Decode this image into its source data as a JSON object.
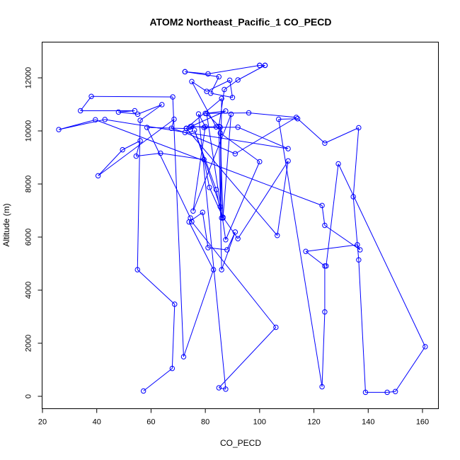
{
  "chart_data": {
    "type": "line",
    "title": "ATOM2 Northeast_Pacific_1 CO_PECD",
    "xlabel": "CO_PECD",
    "ylabel": "Altitude (m)",
    "xlim": [
      20,
      165
    ],
    "ylim": [
      -450,
      13300
    ],
    "xticks": [
      "20",
      "40",
      "60",
      "80",
      "100",
      "120",
      "140",
      "160"
    ],
    "yticks": [
      "0",
      "2000",
      "4000",
      "6000",
      "8000",
      "10000",
      "12000"
    ],
    "grid": false,
    "line_color": "#0000ff",
    "marker": "open-circle",
    "series": [
      {
        "x": [
          57.2,
          67.8,
          68.7,
          55.0,
          56.0,
          64.0,
          55.1,
          48.0,
          54.0,
          34.0,
          38.0,
          68.0,
          72.0,
          83.0,
          74.0,
          79.0,
          81.0,
          88.0,
          91.0,
          86.0,
          85.0,
          87.0,
          92.0,
          102.0,
          102.0,
          100.0,
          100.0,
          81.0,
          72.5,
          72.5,
          85.0,
          82.0,
          90.0,
          89.0,
          80.5,
          75.0,
          84.0,
          74.5,
          87.5,
          80.0,
          96.0,
          113.5,
          91.0,
          72.5,
          67.5,
          68.5,
          40.5,
          49.5,
          56.0,
          54.5,
          63.5,
          79.5,
          81.5,
          86.5,
          92.0,
          110.5,
          106.5,
          73.0,
          58.5,
          74.5,
          75.0,
          106.0,
          85.0,
          87.5,
          77.5,
          80.0,
          75.5,
          89.5,
          86.5,
          85.5,
          100.0,
          87.5,
          80.5,
          85.5,
          86.0,
          84.0,
          76.0,
          85.5,
          86.0,
          73.0,
          74.5,
          75.0,
          79.5,
          92.0,
          110.5,
          43.0,
          26.0,
          39.5,
          123.0,
          124.0,
          137.0,
          136.0,
          117.0,
          124.0,
          124.0,
          123.0,
          107.0,
          114.0,
          124.0,
          136.5,
          134.5,
          136.5,
          139.0,
          147.0,
          150.0,
          161.0,
          129.0,
          124.5
        ],
        "y": [
          200,
          1050,
          3470,
          4770,
          10400,
          10990,
          10630,
          10710,
          10760,
          10760,
          11300,
          11280,
          1490,
          4770,
          6570,
          6930,
          5600,
          5520,
          6190,
          4770,
          10170,
          11560,
          11920,
          12470,
          12470,
          12470,
          12470,
          12150,
          12230,
          12230,
          12040,
          11420,
          11260,
          11910,
          11490,
          11860,
          10150,
          10160,
          10750,
          10660,
          10680,
          10510,
          9140,
          9940,
          10100,
          10440,
          8310,
          9290,
          9630,
          9050,
          9160,
          8920,
          7870,
          6750,
          5940,
          8870,
          6060,
          10090,
          10130,
          6720,
          6580,
          2600,
          320,
          270,
          10640,
          10160,
          6980,
          10630,
          6720,
          9920,
          8840,
          5900,
          10650,
          10140,
          6720,
          7790,
          10030,
          7140,
          11220,
          10100,
          10050,
          10180,
          10130,
          10140,
          9330,
          10430,
          10050,
          10420,
          7190,
          6440,
          5520,
          5710,
          5460,
          4910,
          3180,
          360,
          10440,
          10460,
          9540,
          10120,
          7520,
          5140,
          150,
          150,
          180,
          1870,
          8760,
          4910
        ]
      }
    ]
  }
}
